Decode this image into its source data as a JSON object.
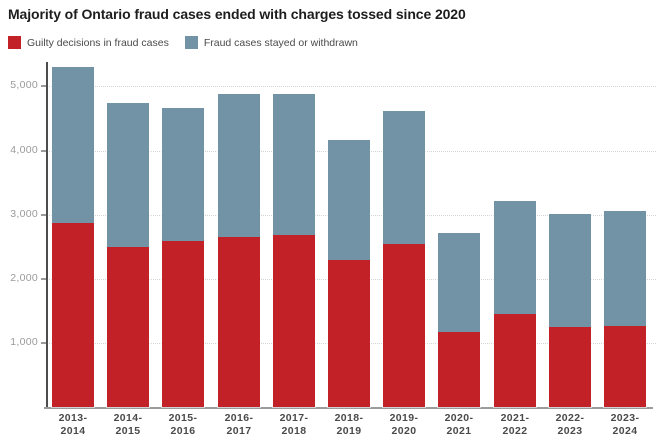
{
  "title": "Majority of Ontario fraud cases ended with charges tossed since 2020",
  "legend": {
    "items": [
      {
        "label": "Guilty decisions in fraud cases",
        "color": "#c22127",
        "icon": "legend-swatch-red"
      },
      {
        "label": "Fraud cases stayed or withdrawn",
        "color": "#7292a5",
        "icon": "legend-swatch-blue"
      }
    ]
  },
  "chart_data": {
    "type": "bar",
    "stacked": true,
    "title": "Majority of Ontario fraud cases ended with charges tossed since 2020",
    "categories": [
      "2013-2014",
      "2014-2015",
      "2015-2016",
      "2016-2017",
      "2017-2018",
      "2018-2019",
      "2019-2020",
      "2020-2021",
      "2021-2022",
      "2022-2023",
      "2023-2024"
    ],
    "series": [
      {
        "name": "Guilty decisions in fraud cases",
        "color": "#c22127",
        "values": [
          2860,
          2490,
          2580,
          2650,
          2680,
          2290,
          2540,
          1160,
          1440,
          1240,
          1260
        ]
      },
      {
        "name": "Fraud cases stayed or withdrawn",
        "color": "#7292a5",
        "values": [
          2440,
          2240,
          2070,
          2230,
          2200,
          1860,
          2060,
          1550,
          1760,
          1760,
          1790
        ]
      }
    ],
    "totals": [
      5300,
      4730,
      4650,
      4880,
      4880,
      4150,
      4600,
      2710,
      3200,
      3000,
      3050
    ],
    "xlabel": "",
    "ylabel": "",
    "ylim": [
      0,
      5400
    ],
    "y_ticks": [
      1000,
      2000,
      3000,
      4000,
      5000
    ],
    "y_tick_labels": [
      "1,000",
      "2,000",
      "3,000",
      "4,000",
      "5,000"
    ],
    "grid": "horizontal-dotted",
    "legend_position": "top-left"
  },
  "colors": {
    "guilty": "#c22127",
    "stayed": "#7292a5",
    "title_text": "#1d1d1d",
    "x_axis_label": "#4a4a4a",
    "y_tick_label": "#9a9a9a",
    "gridline": "#cfd6d7",
    "y_axis_line": "#4d4d4d",
    "x_axis_line": "#9b9b9b",
    "background": "#ffffff"
  }
}
